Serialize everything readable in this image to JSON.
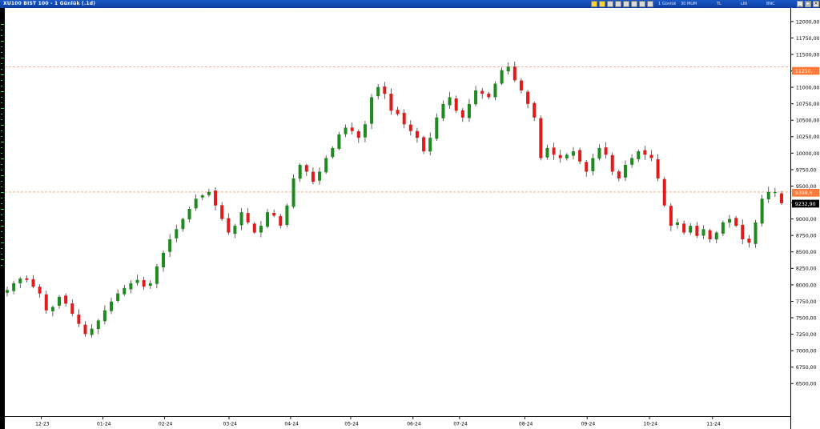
{
  "window": {
    "title": "XU100 BIST 100 - 1 Günlük (.1d)",
    "status_items": [
      "1 Günlük",
      "30 MUM",
      "TL",
      "LIN",
      "BNC"
    ]
  },
  "chart_data": {
    "type": "candlestick",
    "title": "XU100 BIST 100 - 1 Günlük (.1d)",
    "xlabel": "",
    "ylabel": "",
    "x_ticks": [
      "12-23",
      "01-24",
      "02-24",
      "03-24",
      "04-24",
      "05-24",
      "06-24",
      "07-24",
      "08-24",
      "09-24",
      "10-24",
      "11-24"
    ],
    "y_ticks": [
      "12000,00",
      "11750,00",
      "11500,00",
      "11250,00",
      "11000,00",
      "10750,00",
      "10500,00",
      "10250,00",
      "10000,00",
      "9750,00",
      "9500,00",
      "9250,00",
      "9000,00",
      "8750,00",
      "8500,00",
      "8250,00",
      "8000,00",
      "7750,00",
      "7500,00",
      "7250,00",
      "7000,00",
      "6750,00",
      "6500,00"
    ],
    "ylim": [
      6400,
      12150
    ],
    "reference_lines": [
      {
        "label": "11250,",
        "value": 11250,
        "color": "#ff7a3a"
      },
      {
        "label": "9398,6",
        "value": 9398.6,
        "color": "#ff7a3a"
      }
    ],
    "last_price": {
      "label": "9232,90",
      "value": 9232.9
    },
    "up_color": "#1f8a1f",
    "down_color": "#e01b1b",
    "closes": [
      7950,
      8050,
      8120,
      8100,
      8000,
      7900,
      7650,
      7700,
      7850,
      7750,
      7600,
      7450,
      7300,
      7380,
      7500,
      7650,
      7780,
      7900,
      7980,
      8050,
      8100,
      8000,
      8050,
      8300,
      8500,
      8700,
      8850,
      9000,
      9150,
      9300,
      9350,
      9400,
      9200,
      9000,
      8800,
      8900,
      9100,
      8950,
      8800,
      8900,
      9100,
      9050,
      8900,
      9200,
      9600,
      9800,
      9700,
      9550,
      9700,
      9900,
      10050,
      10250,
      10350,
      10300,
      10200,
      10400,
      10800,
      10950,
      10850,
      10600,
      10550,
      10400,
      10300,
      10200,
      10000,
      10200,
      10500,
      10700,
      10800,
      10600,
      10500,
      10700,
      10900,
      10850,
      10800,
      11000,
      11200,
      11250,
      11050,
      10900,
      10700,
      10500,
      9900,
      10050,
      9950,
      9900,
      9950,
      10000,
      9850,
      9700,
      9900,
      10050,
      9950,
      9700,
      9600,
      9800,
      9900,
      10000,
      9950,
      9900,
      9600,
      9200,
      8900,
      8950,
      8800,
      8900,
      8750,
      8850,
      8700,
      8800,
      8950,
      9000,
      8900,
      8700,
      8650,
      8950,
      9300,
      9400,
      9398.6,
      9232.9
    ]
  }
}
